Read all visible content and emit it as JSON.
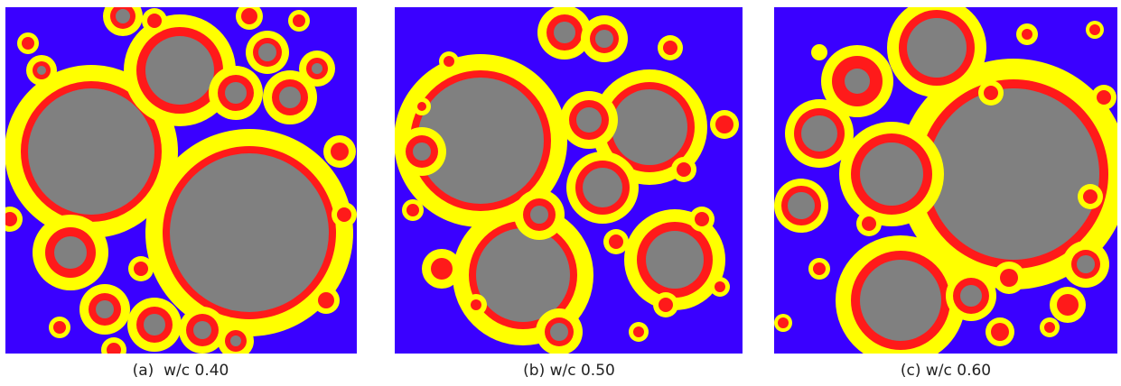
{
  "figure": {
    "panels": [
      {
        "caption": "(a)  w/c 0.40"
      },
      {
        "caption": "(b) w/c 0.50"
      },
      {
        "caption": "(c) w/c 0.60"
      }
    ]
  }
}
